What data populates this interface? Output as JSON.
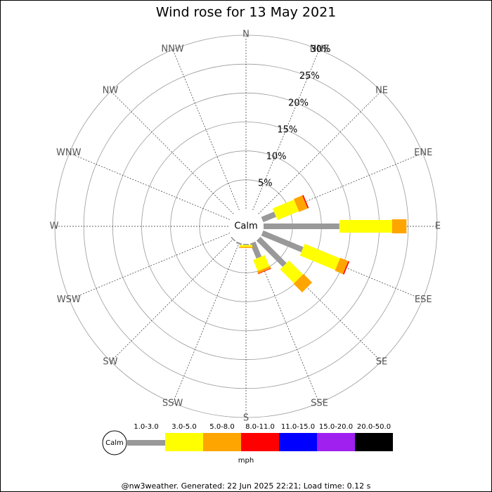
{
  "chart_data": {
    "type": "windrose",
    "title": "Wind rose for 13 May 2021",
    "center_label": "Calm",
    "categories": [
      "N",
      "NNE",
      "NE",
      "ENE",
      "E",
      "ESE",
      "SE",
      "SSE",
      "S",
      "SSW",
      "SW",
      "WSW",
      "W",
      "WNW",
      "NW",
      "NNW"
    ],
    "rlim": [
      0,
      30
    ],
    "rticks": [
      {
        "value": 5,
        "label": "5%"
      },
      {
        "value": 10,
        "label": "10%"
      },
      {
        "value": 15,
        "label": "15%"
      },
      {
        "value": 20,
        "label": "20%"
      },
      {
        "value": 25,
        "label": "25%"
      },
      {
        "value": 30,
        "label": "30%"
      }
    ],
    "series": [
      {
        "name": "1.0-3.0",
        "color": "#999999",
        "values": [
          0,
          0,
          0,
          2.4,
          13.1,
          7.5,
          6.4,
          2.8,
          0.2,
          0.3,
          0.2,
          0,
          0,
          0,
          0,
          0
        ]
      },
      {
        "name": "3.0-5.0",
        "color": "#ffff00",
        "values": [
          0,
          0,
          0,
          4.0,
          9.1,
          6.6,
          3.4,
          2.1,
          0.3,
          0,
          0,
          0,
          0,
          0,
          0,
          0
        ]
      },
      {
        "name": "5.0-8.0",
        "color": "#ffa500",
        "values": [
          0,
          0,
          0,
          1.6,
          2.5,
          1.5,
          2.1,
          0.4,
          0.2,
          0,
          0,
          0,
          0,
          0,
          0,
          0
        ]
      },
      {
        "name": "8.0-11.0",
        "color": "#ff0000",
        "values": [
          0,
          0,
          0,
          0.2,
          0,
          0.2,
          0,
          0.1,
          0,
          0,
          0,
          0,
          0,
          0,
          0,
          0
        ]
      },
      {
        "name": "11.0-15.0",
        "color": "#0000ff",
        "values": [
          0,
          0,
          0,
          0,
          0,
          0,
          0,
          0,
          0,
          0,
          0,
          0,
          0,
          0,
          0,
          0
        ]
      },
      {
        "name": "15.0-20.0",
        "color": "#a020f0",
        "values": [
          0,
          0,
          0,
          0,
          0,
          0,
          0,
          0,
          0,
          0,
          0,
          0,
          0,
          0,
          0,
          0
        ]
      },
      {
        "name": "20.0-50.0",
        "color": "#000000",
        "values": [
          0,
          0,
          0,
          0,
          0,
          0,
          0,
          0,
          0,
          0,
          0,
          0,
          0,
          0,
          0,
          0
        ]
      }
    ],
    "unit_label": "mph",
    "footer": "@nw3weather. Generated: 22 Jun 2025 22:21; Load time: 0.12 s"
  }
}
